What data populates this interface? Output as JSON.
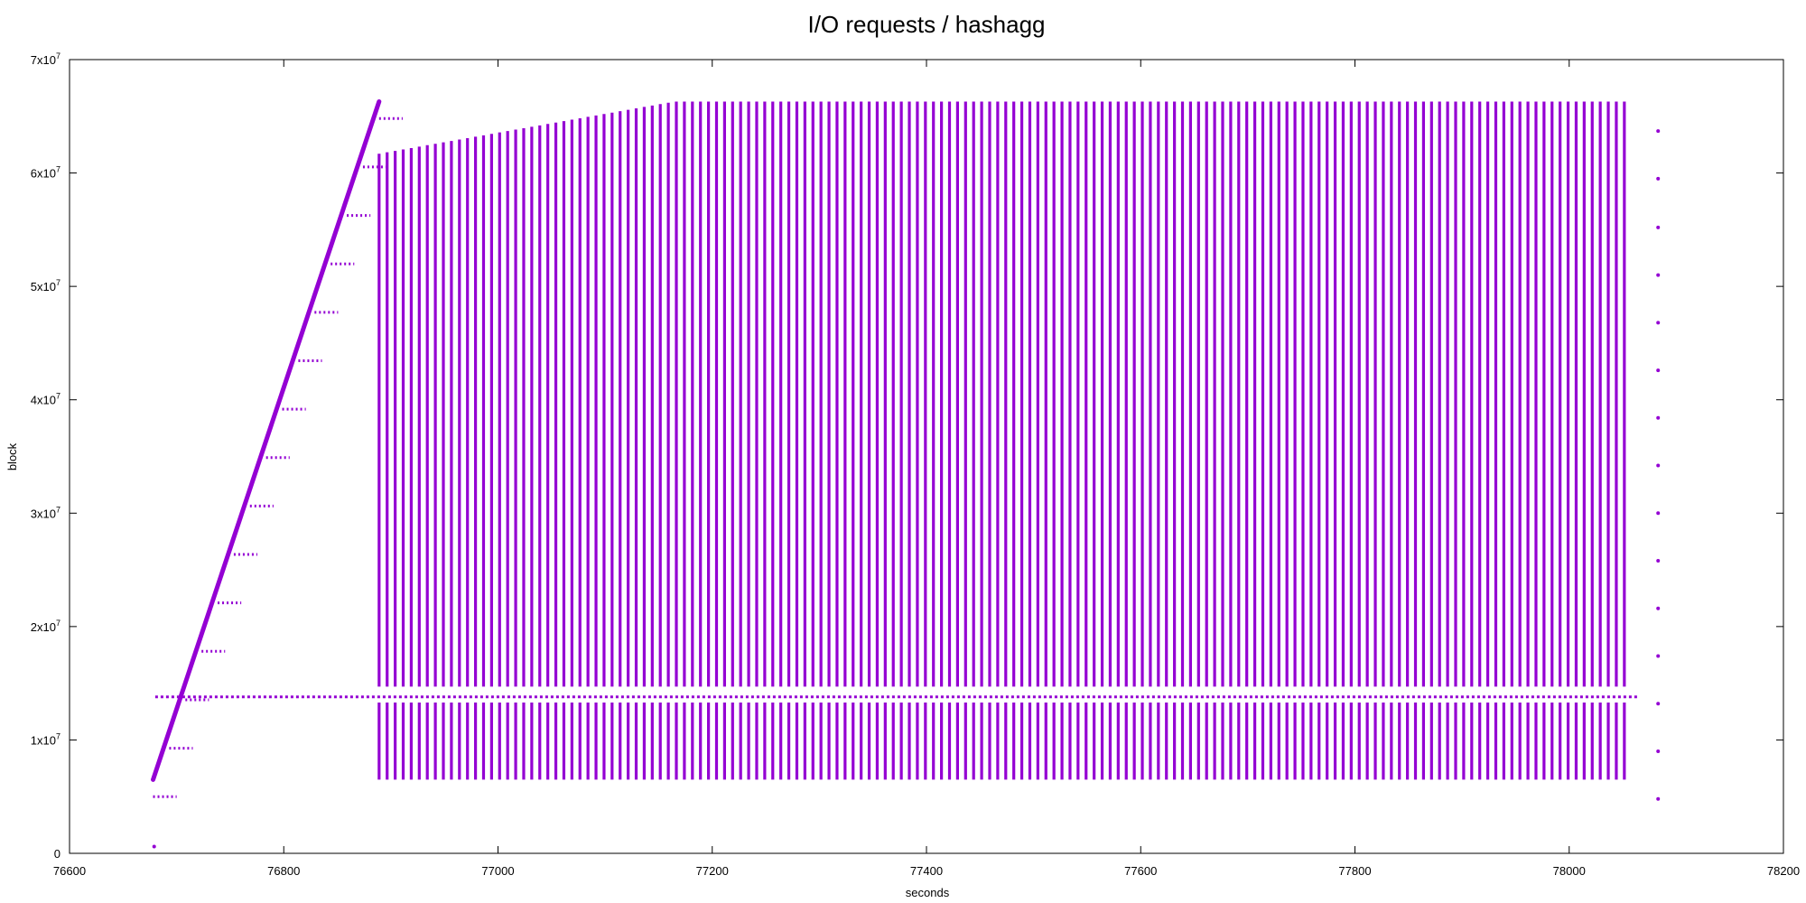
{
  "chart_data": {
    "type": "scatter",
    "title": "I/O requests / hashagg",
    "xlabel": "seconds",
    "ylabel": "block",
    "xlim": [
      76600,
      78200
    ],
    "ylim": [
      0,
      70000000
    ],
    "x_ticks": [
      76600,
      76800,
      77000,
      77200,
      77400,
      77600,
      77800,
      78000,
      78200
    ],
    "x_tick_labels": [
      "76600",
      "76800",
      "77000",
      "77200",
      "77400",
      "77600",
      "77800",
      "78000",
      "78200"
    ],
    "y_ticks": [
      {
        "value": 0,
        "mantissa": "0",
        "exponent": ""
      },
      {
        "value": 10000000,
        "mantissa": "1x10",
        "exponent": "7"
      },
      {
        "value": 20000000,
        "mantissa": "2x10",
        "exponent": "7"
      },
      {
        "value": 30000000,
        "mantissa": "3x10",
        "exponent": "7"
      },
      {
        "value": 40000000,
        "mantissa": "4x10",
        "exponent": "7"
      },
      {
        "value": 50000000,
        "mantissa": "5x10",
        "exponent": "7"
      },
      {
        "value": 60000000,
        "mantissa": "6x10",
        "exponent": "7"
      },
      {
        "value": 70000000,
        "mantissa": "7x10",
        "exponent": "7"
      }
    ],
    "grid": false,
    "legend": "none",
    "color": "#9400d3",
    "series": [
      {
        "description_values": "initial sequential ramp",
        "ramp": {
          "x_start": 76678,
          "y_start": 6500000,
          "x_end": 76889,
          "y_end": 66300000
        },
        "outlier": {
          "x": 76679,
          "y": 600000
        }
      },
      {
        "description_values": "horizontal band",
        "band": {
          "x_start": 76680,
          "x_end": 78065,
          "y": 13800000
        }
      },
      {
        "description_values": "periodic vertical sweeps",
        "sweeps": {
          "x_start": 76889,
          "x_end": 78057,
          "period": 7.5,
          "y_low": 14700000,
          "y_high_start": 61700000,
          "y_high_end": 66300000,
          "y_high_reach_x": 77165,
          "low_segment_low": 6500000,
          "low_segment_high": 13300000
        }
      },
      {
        "description_values": "trailing isolated points",
        "points": [
          {
            "x": 78083,
            "y": 63700000
          },
          {
            "x": 78083,
            "y": 59500000
          },
          {
            "x": 78083,
            "y": 55200000
          },
          {
            "x": 78083,
            "y": 51000000
          },
          {
            "x": 78083,
            "y": 46800000
          },
          {
            "x": 78083,
            "y": 42600000
          },
          {
            "x": 78083,
            "y": 38400000
          },
          {
            "x": 78083,
            "y": 34200000
          },
          {
            "x": 78083,
            "y": 30000000
          },
          {
            "x": 78083,
            "y": 25800000
          },
          {
            "x": 78083,
            "y": 21600000
          },
          {
            "x": 78083,
            "y": 17400000
          },
          {
            "x": 78083,
            "y": 13200000
          },
          {
            "x": 78083,
            "y": 9000000
          },
          {
            "x": 78083,
            "y": 4800000
          }
        ]
      }
    ]
  }
}
